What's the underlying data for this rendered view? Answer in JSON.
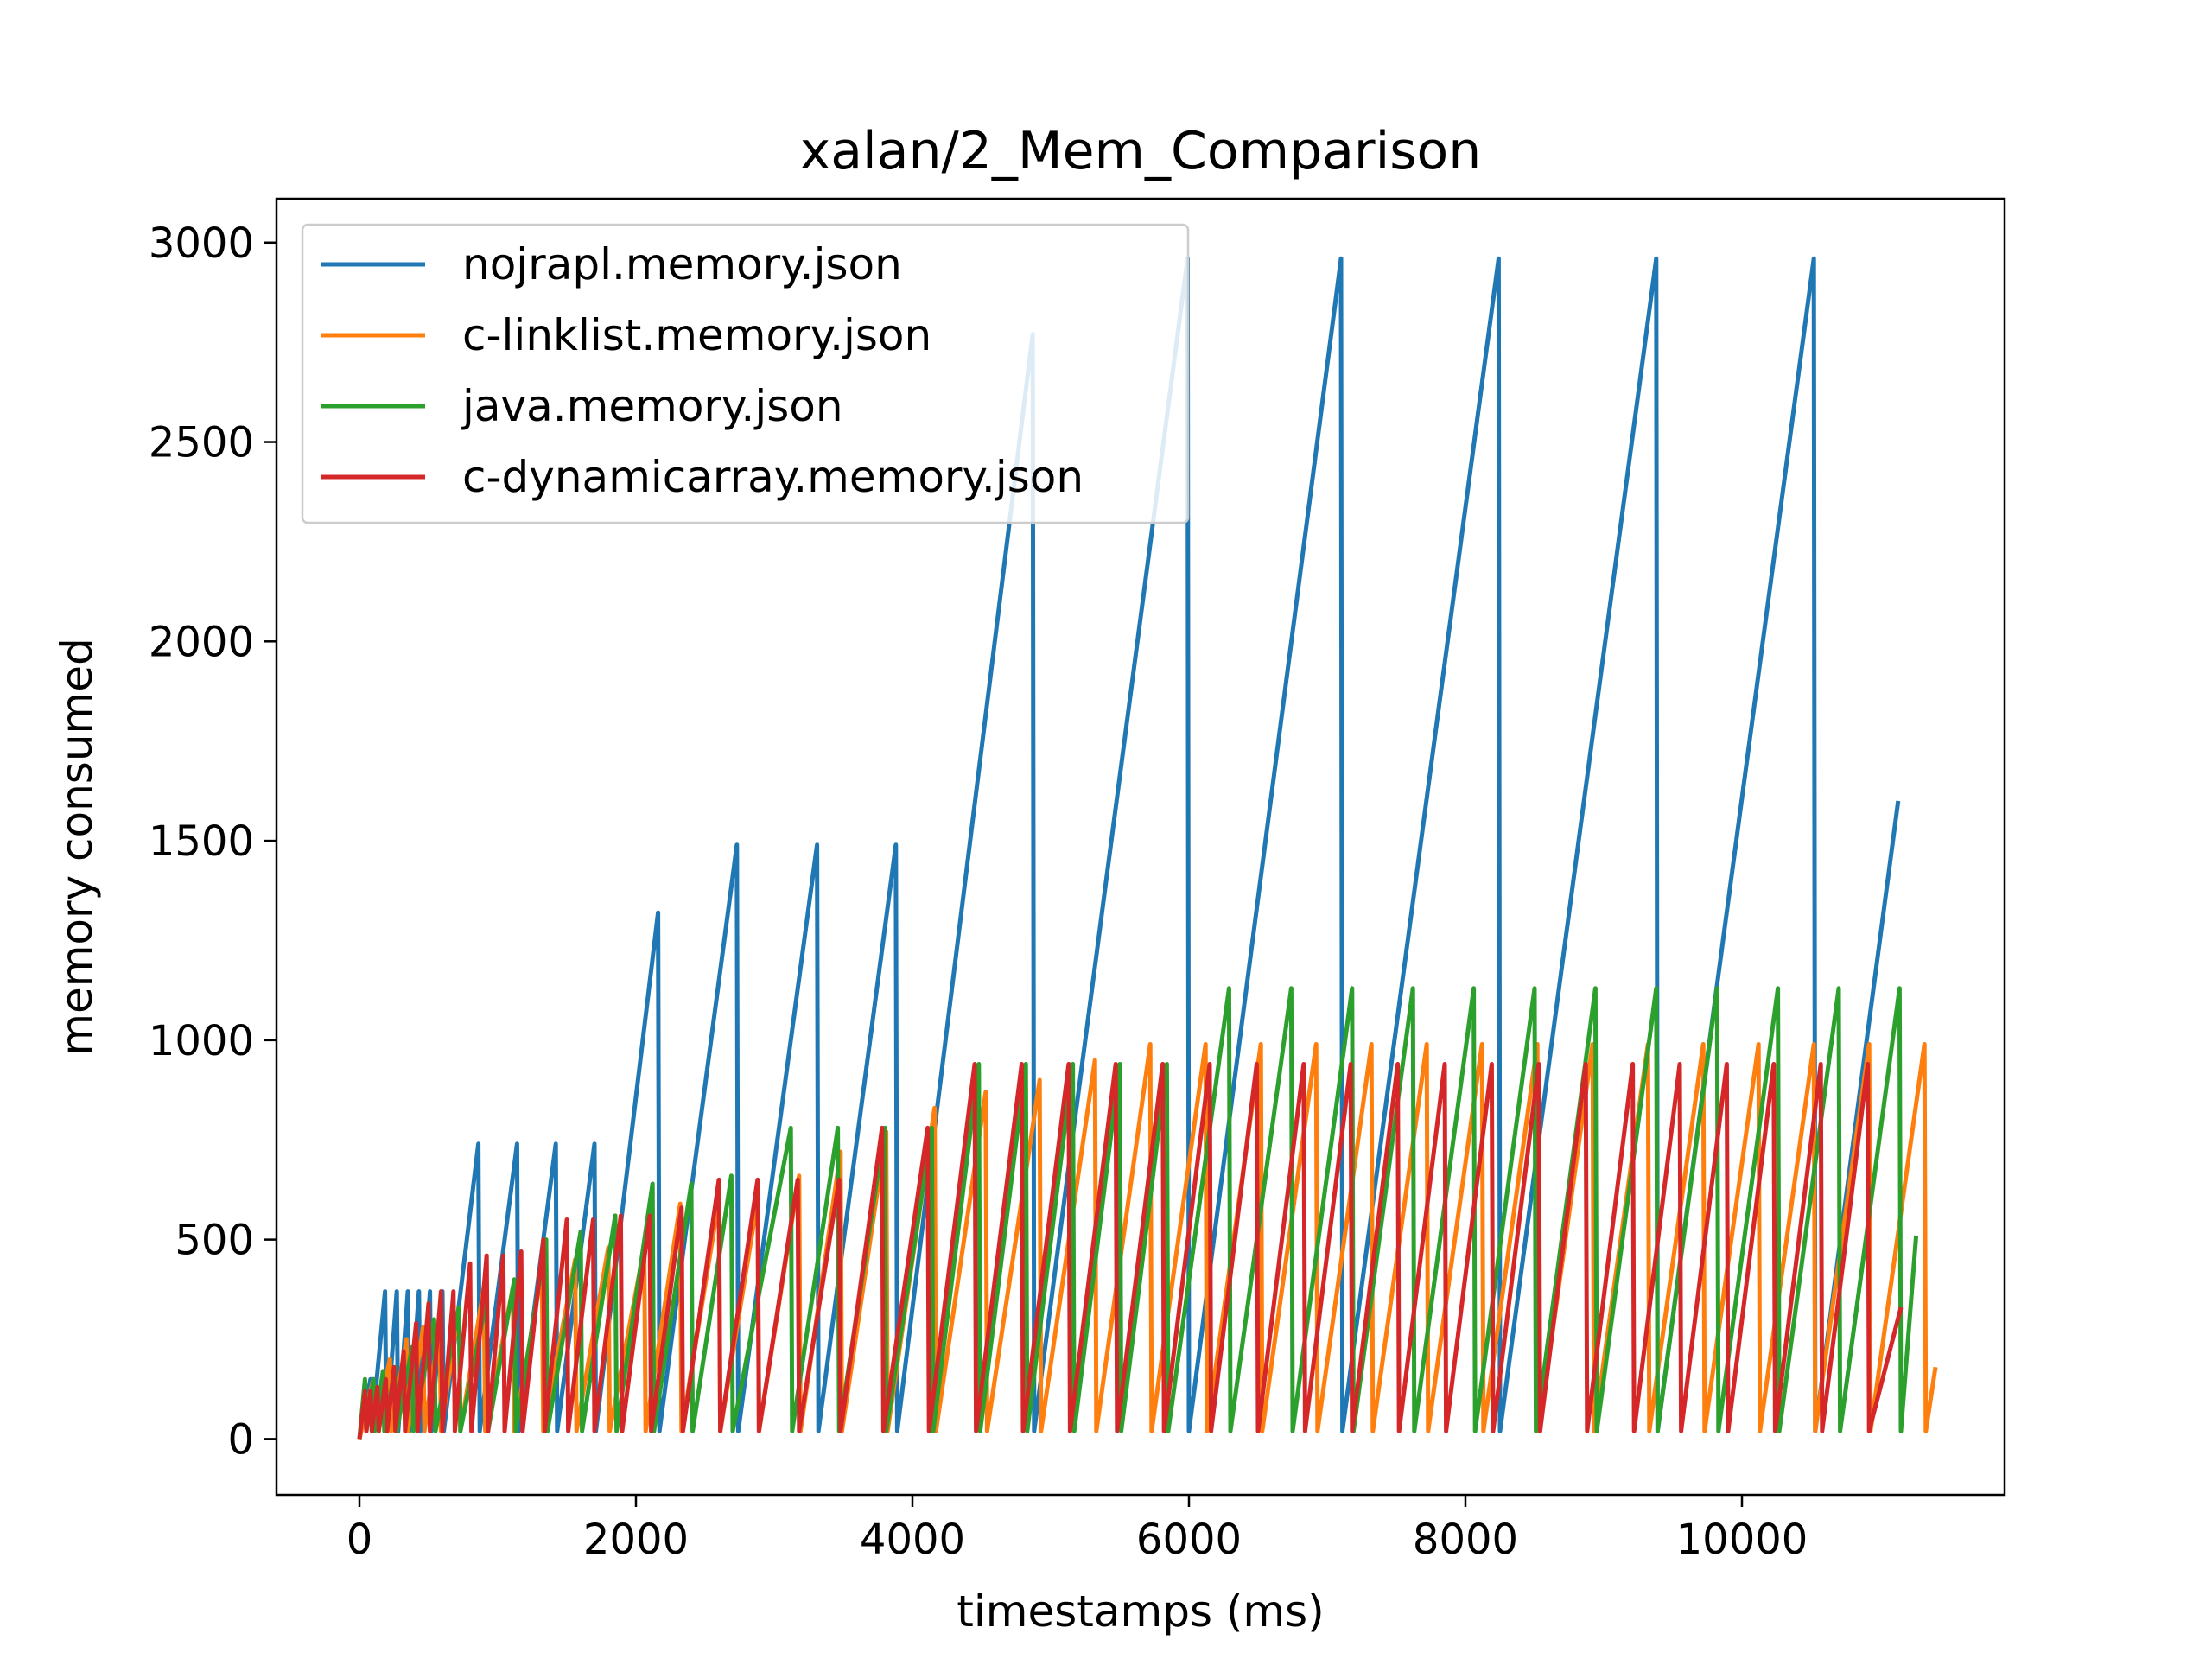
{
  "chart_data": {
    "type": "line",
    "title": "xalan/2_Mem_Comparison",
    "xlabel": "timestamps (ms)",
    "ylabel": "memory consumed",
    "xlim": [
      -600,
      11900
    ],
    "ylim": [
      -140,
      3110
    ],
    "xticks": [
      0,
      2000,
      4000,
      6000,
      8000,
      10000
    ],
    "yticks": [
      0,
      500,
      1000,
      1500,
      2000,
      2500,
      3000
    ],
    "x_tick_labels": [
      "0",
      "2000",
      "4000",
      "6000",
      "8000",
      "10000"
    ],
    "y_tick_labels": [
      "0",
      "500",
      "1000",
      "1500",
      "2000",
      "2500",
      "3000"
    ],
    "grid": false,
    "legend_position": "upper-left",
    "series": [
      {
        "name": "nojrapl.memory.json",
        "color": "#1f77b4",
        "x": [
          0,
          80,
          90,
          185,
          195,
          270,
          280,
          350,
          360,
          430,
          440,
          510,
          520,
          600,
          610,
          860,
          870,
          1140,
          1150,
          1420,
          1430,
          1700,
          1710,
          2160,
          2170,
          2730,
          2740,
          3310,
          3320,
          3880,
          3890,
          4870,
          4880,
          5990,
          6000,
          7100,
          7110,
          8240,
          8250,
          9380,
          9390,
          10520,
          10530,
          11130
        ],
        "y": [
          0,
          150,
          20,
          370,
          20,
          370,
          20,
          370,
          20,
          370,
          20,
          370,
          20,
          370,
          20,
          740,
          20,
          740,
          20,
          740,
          20,
          740,
          20,
          1320,
          20,
          1490,
          20,
          1490,
          20,
          1490,
          20,
          2770,
          20,
          2960,
          20,
          2960,
          20,
          2960,
          20,
          2960,
          20,
          2960,
          20,
          1600
        ]
      },
      {
        "name": "c-linklist.memory.json",
        "color": "#ff7f0e",
        "x": [
          0,
          100,
          110,
          220,
          230,
          340,
          350,
          460,
          470,
          580,
          590,
          720,
          730,
          900,
          910,
          1110,
          1120,
          1320,
          1330,
          1560,
          1570,
          1800,
          1810,
          2060,
          2070,
          2320,
          2330,
          2600,
          2610,
          2880,
          2890,
          3180,
          3190,
          3480,
          3490,
          3810,
          3820,
          4160,
          4170,
          4530,
          4540,
          4920,
          4930,
          5320,
          5330,
          5720,
          5730,
          6120,
          6130,
          6520,
          6530,
          6920,
          6930,
          7320,
          7330,
          7720,
          7730,
          8120,
          8130,
          8520,
          8530,
          8920,
          8930,
          9320,
          9330,
          9720,
          9730,
          10120,
          10130,
          10520,
          10530,
          10920,
          10930,
          11320,
          11330,
          11400
        ],
        "y": [
          0,
          150,
          20,
          200,
          20,
          250,
          20,
          280,
          20,
          290,
          20,
          330,
          20,
          380,
          20,
          380,
          20,
          420,
          20,
          450,
          20,
          480,
          20,
          480,
          20,
          590,
          20,
          600,
          20,
          600,
          20,
          660,
          20,
          720,
          20,
          770,
          20,
          830,
          20,
          870,
          20,
          900,
          20,
          950,
          20,
          990,
          20,
          990,
          20,
          990,
          20,
          990,
          20,
          990,
          20,
          990,
          20,
          990,
          20,
          990,
          20,
          990,
          20,
          990,
          20,
          990,
          20,
          990,
          20,
          990,
          20,
          990,
          20,
          990,
          20,
          180
        ]
      },
      {
        "name": "java.memory.json",
        "color": "#2ca02c",
        "x": [
          0,
          40,
          50,
          100,
          110,
          170,
          180,
          260,
          270,
          380,
          390,
          540,
          550,
          720,
          730,
          920,
          930,
          1120,
          1130,
          1350,
          1360,
          1600,
          1610,
          1850,
          1860,
          2120,
          2130,
          2400,
          2410,
          2690,
          2700,
          3120,
          3130,
          3460,
          3470,
          3800,
          3810,
          4140,
          4150,
          4480,
          4490,
          4820,
          4830,
          5160,
          5170,
          5500,
          5510,
          5840,
          5850,
          6290,
          6300,
          6740,
          6750,
          7180,
          7190,
          7620,
          7630,
          8060,
          8070,
          8500,
          8510,
          8940,
          8950,
          9380,
          9390,
          9820,
          9830,
          10260,
          10270,
          10700,
          10710,
          11140,
          11150,
          11260
        ],
        "y": [
          0,
          150,
          20,
          150,
          20,
          170,
          20,
          180,
          20,
          230,
          20,
          300,
          20,
          330,
          20,
          350,
          20,
          400,
          20,
          500,
          20,
          520,
          20,
          560,
          20,
          640,
          20,
          640,
          20,
          660,
          20,
          780,
          20,
          780,
          20,
          780,
          20,
          780,
          20,
          940,
          20,
          940,
          20,
          940,
          20,
          940,
          20,
          940,
          20,
          1130,
          20,
          1130,
          20,
          1130,
          20,
          1130,
          20,
          1130,
          20,
          1130,
          20,
          1130,
          20,
          1130,
          20,
          1130,
          20,
          1130,
          20,
          1130,
          20,
          1130,
          20,
          510
        ]
      },
      {
        "name": "c-dynamicarray.memory.json",
        "color": "#d62728",
        "x": [
          0,
          40,
          50,
          80,
          90,
          130,
          140,
          190,
          200,
          250,
          260,
          320,
          330,
          410,
          420,
          500,
          510,
          590,
          600,
          680,
          690,
          800,
          810,
          920,
          930,
          1040,
          1050,
          1170,
          1180,
          1330,
          1340,
          1500,
          1510,
          1690,
          1700,
          1890,
          1900,
          2100,
          2110,
          2330,
          2340,
          2600,
          2610,
          2880,
          2890,
          3170,
          3180,
          3470,
          3480,
          3780,
          3790,
          4110,
          4120,
          4450,
          4460,
          4790,
          4800,
          5130,
          5140,
          5470,
          5480,
          5810,
          5820,
          6150,
          6160,
          6490,
          6500,
          6830,
          6840,
          7170,
          7180,
          7510,
          7520,
          7850,
          7860,
          8190,
          8200,
          8530,
          8540,
          8870,
          8880,
          9210,
          9220,
          9550,
          9560,
          9890,
          9900,
          10230,
          10240,
          10570,
          10580,
          10910,
          10920,
          11150
        ],
        "y": [
          0,
          120,
          20,
          120,
          20,
          130,
          20,
          150,
          20,
          180,
          20,
          220,
          20,
          290,
          20,
          340,
          20,
          370,
          20,
          370,
          20,
          440,
          20,
          460,
          20,
          460,
          20,
          470,
          20,
          500,
          20,
          550,
          20,
          550,
          20,
          560,
          20,
          560,
          20,
          580,
          20,
          650,
          20,
          650,
          20,
          650,
          20,
          650,
          20,
          780,
          20,
          780,
          20,
          940,
          20,
          940,
          20,
          940,
          20,
          940,
          20,
          940,
          20,
          940,
          20,
          940,
          20,
          940,
          20,
          940,
          20,
          940,
          20,
          940,
          20,
          940,
          20,
          940,
          20,
          940,
          20,
          940,
          20,
          940,
          20,
          940,
          20,
          940,
          20,
          940,
          20,
          940,
          20,
          330
        ]
      }
    ]
  }
}
